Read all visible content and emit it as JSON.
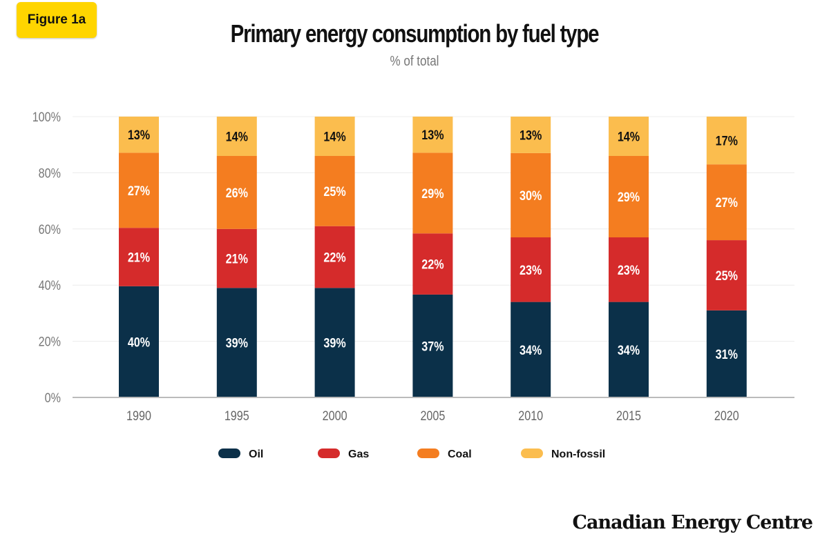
{
  "badge": "Figure 1a",
  "brand": "Canadian Energy Centre",
  "chart_data": {
    "type": "bar",
    "stacked": true,
    "title": "Primary energy consumption by fuel type",
    "subtitle": "% of total",
    "xlabel": "",
    "ylabel": "",
    "ylim": [
      0,
      100
    ],
    "yticks": [
      "0%",
      "20%",
      "40%",
      "60%",
      "80%",
      "100%"
    ],
    "grid": true,
    "legend_placement": "bottom",
    "categories": [
      "1990",
      "1995",
      "2000",
      "2005",
      "2010",
      "2015",
      "2020"
    ],
    "series": [
      {
        "name": "Oil",
        "color": "#0b3049",
        "label_color": "#ffffff",
        "values": [
          40,
          39,
          39,
          37,
          34,
          34,
          31
        ]
      },
      {
        "name": "Gas",
        "color": "#d52b2b",
        "label_color": "#ffffff",
        "values": [
          21,
          21,
          22,
          22,
          23,
          23,
          25
        ]
      },
      {
        "name": "Coal",
        "color": "#f47d20",
        "label_color": "#ffffff",
        "values": [
          27,
          26,
          25,
          29,
          30,
          29,
          27
        ]
      },
      {
        "name": "Non-fossil",
        "color": "#fbbd4e",
        "label_color": "#111111",
        "values": [
          13,
          14,
          14,
          13,
          13,
          14,
          17
        ]
      }
    ]
  }
}
